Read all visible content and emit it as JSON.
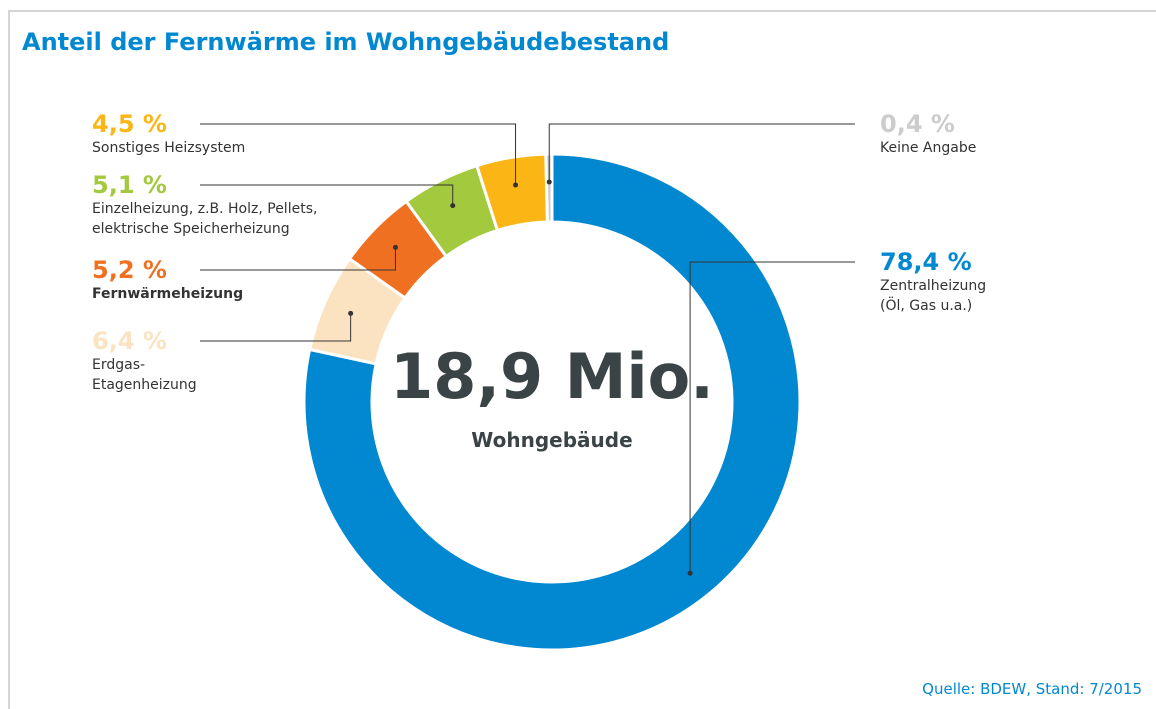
{
  "chart_data": {
    "type": "donut",
    "title": "Anteil der Fernwärme im Wohngebäudebestand",
    "categories": [
      "Zentralheizung\n(Öl, Gas u.a.)",
      "Erdgas-\nEtagenheizung",
      "Fernwärmeheizung",
      "Einzelheizung, z.B. Holz, Pellets,\nelektrische Speicherheizung",
      "Sonstiges Heizsystem",
      "Keine Angabe"
    ],
    "values": [
      78.4,
      6.4,
      5.2,
      5.1,
      4.5,
      0.4
    ],
    "value_labels": [
      "78,4 %",
      "6,4 %",
      "5,2 %",
      "5,1 %",
      "4,5 %",
      "0,4 %"
    ],
    "colors": [
      "#0288d1",
      "#fbe3c2",
      "#f07022",
      "#a3c93e",
      "#fbb616",
      "#cccccc"
    ],
    "center_value": "18,9 Mio.",
    "center_label": "Wohngebäude",
    "source": "Quelle: BDEW, Stand: 7/2015"
  }
}
